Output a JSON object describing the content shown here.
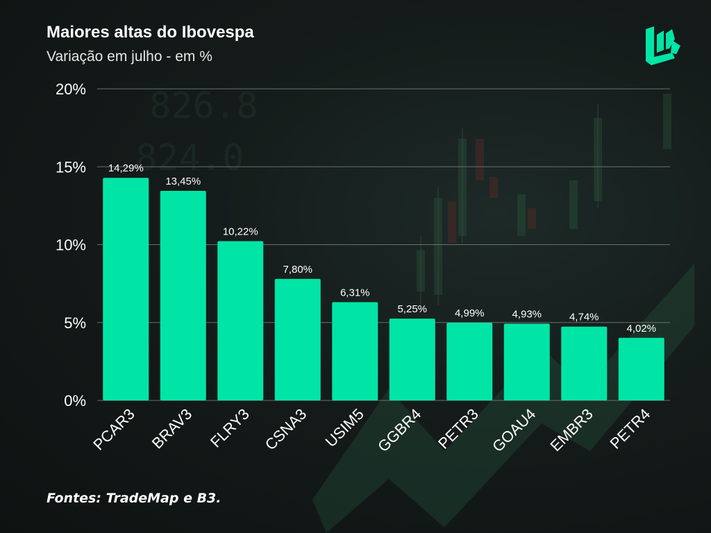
{
  "header": {
    "title": "Maiores altas do Ibovespa",
    "subtitle": "Variação em julho - em %"
  },
  "footer": {
    "source": "Fontes: TradeMap e B3."
  },
  "logo": {
    "icon": "brand-logo-icon"
  },
  "colors": {
    "bar": "#00e5a6",
    "grid": "#6a6f6e",
    "text": "#ffffff"
  },
  "chart_data": {
    "type": "bar",
    "categories": [
      "PCAR3",
      "BRAV3",
      "FLRY3",
      "CSNA3",
      "USIM5",
      "GGBR4",
      "PETR3",
      "GOAU4",
      "EMBR3",
      "PETR4"
    ],
    "values": [
      14.29,
      13.45,
      10.22,
      7.8,
      6.31,
      5.25,
      4.99,
      4.93,
      4.74,
      4.02
    ],
    "data_labels": [
      "14,29%",
      "13,45%",
      "10,22%",
      "7,80%",
      "6,31%",
      "5,25%",
      "4,99%",
      "4,93%",
      "4,74%",
      "4,02%"
    ],
    "yticks": [
      0,
      5,
      10,
      15,
      20
    ],
    "ytick_labels": [
      "0%",
      "5%",
      "10%",
      "15%",
      "20%"
    ],
    "ylim": [
      0,
      20
    ],
    "xlabel": "",
    "ylabel": "",
    "grid": true,
    "legend": "none"
  }
}
